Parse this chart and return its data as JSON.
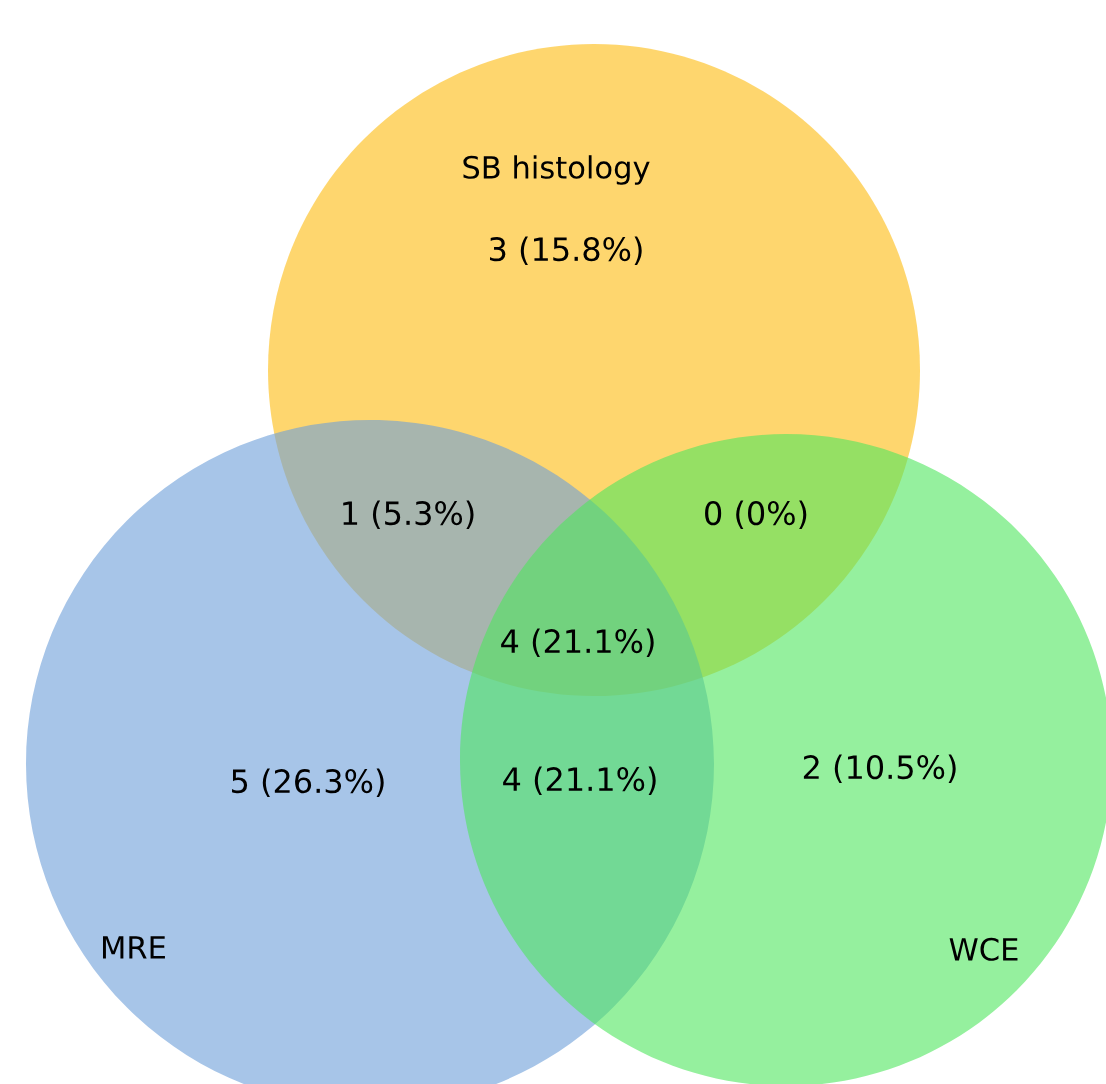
{
  "chart_data": {
    "type": "other",
    "annotations": [
      "SB histology",
      "MRE",
      "WCE"
    ],
    "values": [
      3,
      1,
      0,
      4,
      5,
      4,
      2
    ],
    "value_labels": [
      "3 (15.8%)",
      "1 (5.3%)",
      "0 (0%)",
      "4 (21.1%)",
      "5 (26.3%)",
      "4 (21.1%)",
      "2 (10.5%)"
    ]
  }
}
